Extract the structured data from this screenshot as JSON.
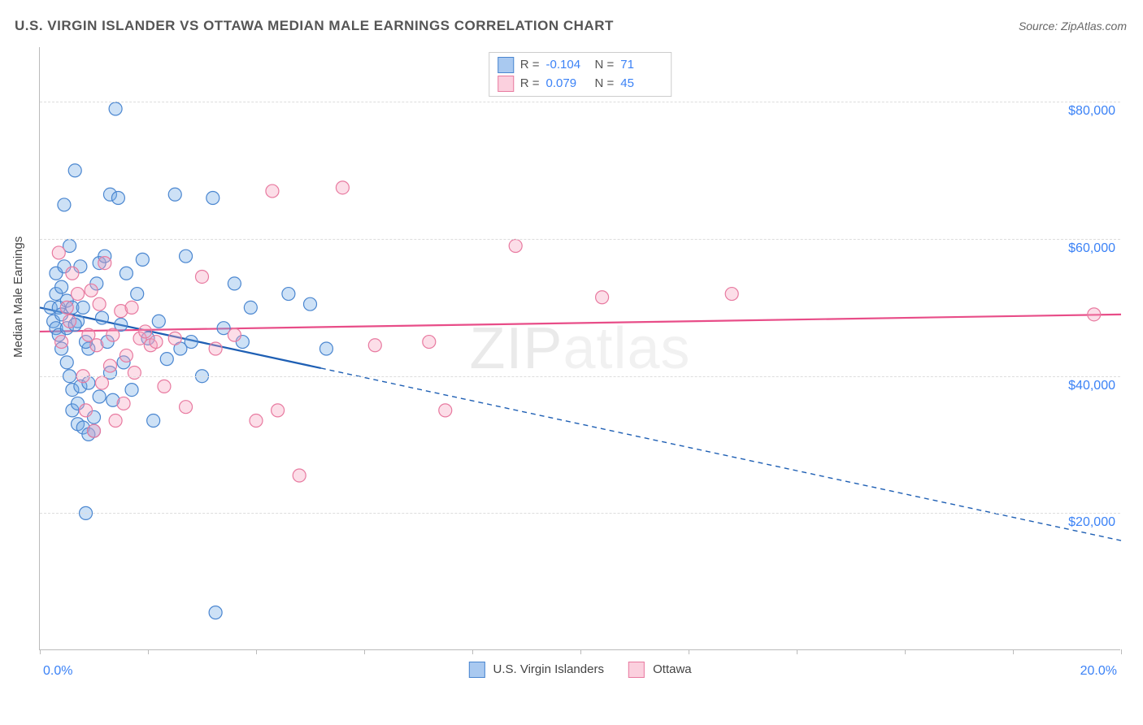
{
  "title": "U.S. VIRGIN ISLANDER VS OTTAWA MEDIAN MALE EARNINGS CORRELATION CHART",
  "source": "Source: ZipAtlas.com",
  "ylabel": "Median Male Earnings",
  "watermark_a": "ZIP",
  "watermark_b": "atlas",
  "chart": {
    "type": "scatter",
    "background_color": "#ffffff",
    "grid_color": "#dddddd",
    "axis_color": "#bbbbbb",
    "xlim": [
      0,
      20
    ],
    "ylim": [
      0,
      88000
    ],
    "xticks": [
      0,
      2,
      4,
      6,
      8,
      10,
      12,
      14,
      16,
      18,
      20
    ],
    "xtick_labels": {
      "0": "0.0%",
      "20": "20.0%"
    },
    "yticks": [
      20000,
      40000,
      60000,
      80000
    ],
    "ytick_labels": [
      "$20,000",
      "$40,000",
      "$60,000",
      "$80,000"
    ],
    "marker_radius": 8,
    "marker_fill_opacity": 0.35,
    "marker_stroke_width": 1.2,
    "line_width": 2.2,
    "label_fontsize": 16,
    "label_color": "#3b82f6",
    "stats_value_color": "#3b82f6",
    "series": [
      {
        "name": "U.S. Virgin Islanders",
        "color": "#6fa8e6",
        "stroke": "#4a86d0",
        "line_color": "#1e5fb4",
        "R": "-0.104",
        "N": "71",
        "trend": {
          "x1": 0,
          "y1": 50000,
          "x2": 20,
          "y2": 16000,
          "solid_until_x": 5.2
        },
        "points": [
          [
            0.2,
            50000
          ],
          [
            0.25,
            48000
          ],
          [
            0.3,
            52000
          ],
          [
            0.3,
            47000
          ],
          [
            0.3,
            55000
          ],
          [
            0.35,
            50000
          ],
          [
            0.35,
            46000
          ],
          [
            0.4,
            53000
          ],
          [
            0.4,
            49000
          ],
          [
            0.4,
            44000
          ],
          [
            0.45,
            65000
          ],
          [
            0.45,
            56000
          ],
          [
            0.5,
            51000
          ],
          [
            0.5,
            47000
          ],
          [
            0.5,
            42000
          ],
          [
            0.55,
            59000
          ],
          [
            0.55,
            40000
          ],
          [
            0.6,
            50000
          ],
          [
            0.6,
            38000
          ],
          [
            0.6,
            35000
          ],
          [
            0.65,
            70000
          ],
          [
            0.7,
            48000
          ],
          [
            0.7,
            36000
          ],
          [
            0.7,
            33000
          ],
          [
            0.75,
            56000
          ],
          [
            0.75,
            38500
          ],
          [
            0.8,
            50000
          ],
          [
            0.8,
            32500
          ],
          [
            0.85,
            20000
          ],
          [
            0.9,
            39000
          ],
          [
            0.9,
            44000
          ],
          [
            0.9,
            31500
          ],
          [
            1.0,
            34000
          ],
          [
            1.0,
            32000
          ],
          [
            1.05,
            53500
          ],
          [
            1.1,
            56500
          ],
          [
            1.1,
            37000
          ],
          [
            1.15,
            48500
          ],
          [
            1.2,
            57500
          ],
          [
            1.25,
            45000
          ],
          [
            1.3,
            66500
          ],
          [
            1.3,
            40500
          ],
          [
            1.35,
            36500
          ],
          [
            1.4,
            79000
          ],
          [
            1.45,
            66000
          ],
          [
            1.5,
            47500
          ],
          [
            1.55,
            42000
          ],
          [
            1.6,
            55000
          ],
          [
            1.7,
            38000
          ],
          [
            1.8,
            52000
          ],
          [
            1.9,
            57000
          ],
          [
            2.0,
            45500
          ],
          [
            2.1,
            33500
          ],
          [
            2.2,
            48000
          ],
          [
            2.35,
            42500
          ],
          [
            2.5,
            66500
          ],
          [
            2.6,
            44000
          ],
          [
            2.7,
            57500
          ],
          [
            2.8,
            45000
          ],
          [
            3.0,
            40000
          ],
          [
            3.2,
            66000
          ],
          [
            3.25,
            5500
          ],
          [
            3.4,
            47000
          ],
          [
            3.6,
            53500
          ],
          [
            3.75,
            45000
          ],
          [
            3.9,
            50000
          ],
          [
            4.6,
            52000
          ],
          [
            5.0,
            50500
          ],
          [
            5.3,
            44000
          ],
          [
            0.65,
            47500
          ],
          [
            0.85,
            45000
          ]
        ]
      },
      {
        "name": "Ottawa",
        "color": "#f5a0bd",
        "stroke": "#e87aa0",
        "line_color": "#e84d88",
        "R": "0.079",
        "N": "45",
        "trend": {
          "x1": 0,
          "y1": 46500,
          "x2": 20,
          "y2": 49000,
          "solid_until_x": 20
        },
        "points": [
          [
            0.35,
            58000
          ],
          [
            0.4,
            45000
          ],
          [
            0.5,
            50000
          ],
          [
            0.55,
            48000
          ],
          [
            0.6,
            55000
          ],
          [
            0.7,
            52000
          ],
          [
            0.8,
            40000
          ],
          [
            0.85,
            35000
          ],
          [
            0.9,
            46000
          ],
          [
            0.95,
            52500
          ],
          [
            1.0,
            32000
          ],
          [
            1.05,
            44500
          ],
          [
            1.1,
            50500
          ],
          [
            1.15,
            39000
          ],
          [
            1.2,
            56500
          ],
          [
            1.3,
            41500
          ],
          [
            1.35,
            46000
          ],
          [
            1.4,
            33500
          ],
          [
            1.5,
            49500
          ],
          [
            1.55,
            36000
          ],
          [
            1.6,
            43000
          ],
          [
            1.7,
            50000
          ],
          [
            1.75,
            40500
          ],
          [
            1.85,
            45500
          ],
          [
            1.95,
            46500
          ],
          [
            2.05,
            44500
          ],
          [
            2.15,
            45000
          ],
          [
            2.3,
            38500
          ],
          [
            2.5,
            45500
          ],
          [
            2.7,
            35500
          ],
          [
            3.0,
            54500
          ],
          [
            3.25,
            44000
          ],
          [
            3.6,
            46000
          ],
          [
            4.0,
            33500
          ],
          [
            4.3,
            67000
          ],
          [
            4.4,
            35000
          ],
          [
            4.8,
            25500
          ],
          [
            5.6,
            67500
          ],
          [
            6.2,
            44500
          ],
          [
            7.2,
            45000
          ],
          [
            7.5,
            35000
          ],
          [
            8.8,
            59000
          ],
          [
            10.4,
            51500
          ],
          [
            12.8,
            52000
          ],
          [
            19.5,
            49000
          ]
        ]
      }
    ],
    "legend": {
      "items": [
        {
          "label": "U.S. Virgin Islanders",
          "fill": "#a9c9f0",
          "stroke": "#4a86d0"
        },
        {
          "label": "Ottawa",
          "fill": "#fbd0de",
          "stroke": "#e87aa0"
        }
      ]
    }
  }
}
